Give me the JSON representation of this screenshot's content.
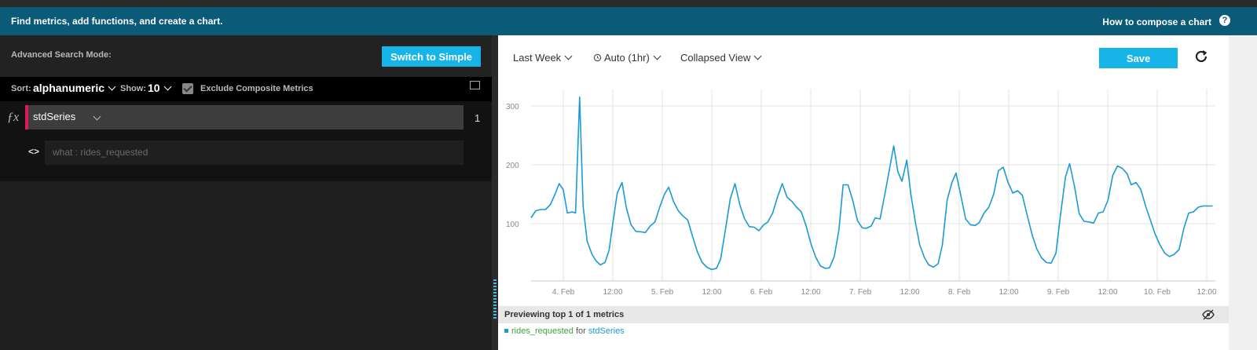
{
  "banner": {
    "message": "Find metrics, add functions, and create a chart.",
    "help_link": "How to compose a chart",
    "help_icon": "?"
  },
  "left": {
    "mode_label": "Advanced Search Mode:",
    "switch_button": "Switch to Simple",
    "sort_label": "Sort:",
    "sort_value": "alphanumeric",
    "show_label": "Show:",
    "show_value": "10",
    "exclude_label": "Exclude Composite Metrics",
    "exclude_checked": true,
    "function_symbol": "ƒx",
    "function_name": "stdSeries",
    "result_count": "1",
    "arg_icon": "<>",
    "arg_placeholder": "what : rides_requested"
  },
  "right": {
    "time_range": "Last Week",
    "interval": "Auto (1hr)",
    "view": "Collapsed View",
    "save_button": "Save",
    "preview_text": "Previewing top 1 of 1 metrics",
    "legend_metric": "rides_requested",
    "legend_for": "for",
    "legend_series": "stdSeries"
  },
  "colors": {
    "accent": "#17b4e8",
    "banner": "#0b5a78",
    "function_marker": "#e01a5a",
    "line": "#1a9ad6"
  },
  "chart_data": {
    "type": "line",
    "y_ticks": [
      "300",
      "200",
      "100"
    ],
    "x_ticks": [
      "4. Feb",
      "12:00",
      "5. Feb",
      "12:00",
      "6. Feb",
      "12:00",
      "7. Feb",
      "12:00",
      "8. Feb",
      "12:00",
      "9. Feb",
      "12:00",
      "10. Feb",
      "12:00"
    ],
    "ylim": [
      0,
      330
    ],
    "xlim": [
      0,
      1
    ],
    "grid": true,
    "series": [
      {
        "color": "#1a9ad6",
        "points": [
          [
            0.0,
            110
          ],
          [
            0.007,
            122
          ],
          [
            0.014,
            124
          ],
          [
            0.021,
            124
          ],
          [
            0.028,
            132
          ],
          [
            0.035,
            150
          ],
          [
            0.041,
            168
          ],
          [
            0.047,
            158
          ],
          [
            0.053,
            118
          ],
          [
            0.06,
            120
          ],
          [
            0.065,
            118
          ],
          [
            0.071,
            315
          ],
          [
            0.076,
            130
          ],
          [
            0.082,
            70
          ],
          [
            0.089,
            48
          ],
          [
            0.095,
            37
          ],
          [
            0.101,
            30
          ],
          [
            0.108,
            34
          ],
          [
            0.114,
            55
          ],
          [
            0.12,
            105
          ],
          [
            0.126,
            152
          ],
          [
            0.133,
            170
          ],
          [
            0.139,
            128
          ],
          [
            0.146,
            98
          ],
          [
            0.153,
            87
          ],
          [
            0.161,
            86
          ],
          [
            0.167,
            85
          ],
          [
            0.174,
            96
          ],
          [
            0.181,
            103
          ],
          [
            0.188,
            128
          ],
          [
            0.195,
            150
          ],
          [
            0.201,
            162
          ],
          [
            0.208,
            138
          ],
          [
            0.215,
            122
          ],
          [
            0.222,
            113
          ],
          [
            0.229,
            106
          ],
          [
            0.236,
            78
          ],
          [
            0.243,
            52
          ],
          [
            0.25,
            34
          ],
          [
            0.257,
            26
          ],
          [
            0.264,
            22
          ],
          [
            0.271,
            24
          ],
          [
            0.277,
            40
          ],
          [
            0.284,
            90
          ],
          [
            0.291,
            142
          ],
          [
            0.298,
            168
          ],
          [
            0.305,
            132
          ],
          [
            0.312,
            108
          ],
          [
            0.319,
            95
          ],
          [
            0.326,
            94
          ],
          [
            0.333,
            88
          ],
          [
            0.34,
            98
          ],
          [
            0.346,
            103
          ],
          [
            0.353,
            118
          ],
          [
            0.36,
            145
          ],
          [
            0.367,
            168
          ],
          [
            0.374,
            145
          ],
          [
            0.381,
            138
          ],
          [
            0.388,
            128
          ],
          [
            0.395,
            120
          ],
          [
            0.402,
            96
          ],
          [
            0.409,
            66
          ],
          [
            0.416,
            43
          ],
          [
            0.423,
            28
          ],
          [
            0.43,
            24
          ],
          [
            0.436,
            25
          ],
          [
            0.443,
            44
          ],
          [
            0.45,
            90
          ],
          [
            0.456,
            166
          ],
          [
            0.463,
            166
          ],
          [
            0.47,
            140
          ],
          [
            0.477,
            105
          ],
          [
            0.484,
            93
          ],
          [
            0.49,
            92
          ],
          [
            0.497,
            96
          ],
          [
            0.503,
            110
          ],
          [
            0.51,
            108
          ],
          [
            0.517,
            150
          ],
          [
            0.524,
            194
          ],
          [
            0.53,
            232
          ],
          [
            0.536,
            188
          ],
          [
            0.542,
            172
          ],
          [
            0.549,
            208
          ],
          [
            0.555,
            150
          ],
          [
            0.562,
            100
          ],
          [
            0.568,
            64
          ],
          [
            0.575,
            42
          ],
          [
            0.581,
            30
          ],
          [
            0.588,
            26
          ],
          [
            0.595,
            32
          ],
          [
            0.601,
            64
          ],
          [
            0.608,
            140
          ],
          [
            0.615,
            170
          ],
          [
            0.621,
            186
          ],
          [
            0.628,
            148
          ],
          [
            0.635,
            108
          ],
          [
            0.642,
            98
          ],
          [
            0.649,
            97
          ],
          [
            0.655,
            102
          ],
          [
            0.662,
            118
          ],
          [
            0.669,
            128
          ],
          [
            0.676,
            150
          ],
          [
            0.683,
            190
          ],
          [
            0.69,
            196
          ],
          [
            0.697,
            170
          ],
          [
            0.704,
            152
          ],
          [
            0.711,
            156
          ],
          [
            0.718,
            148
          ],
          [
            0.725,
            114
          ],
          [
            0.732,
            82
          ],
          [
            0.739,
            57
          ],
          [
            0.746,
            42
          ],
          [
            0.753,
            34
          ],
          [
            0.76,
            33
          ],
          [
            0.767,
            50
          ],
          [
            0.774,
            118
          ],
          [
            0.781,
            180
          ],
          [
            0.787,
            202
          ],
          [
            0.794,
            164
          ],
          [
            0.801,
            117
          ],
          [
            0.808,
            104
          ],
          [
            0.815,
            103
          ],
          [
            0.822,
            101
          ],
          [
            0.829,
            118
          ],
          [
            0.836,
            120
          ],
          [
            0.843,
            140
          ],
          [
            0.85,
            182
          ],
          [
            0.857,
            198
          ],
          [
            0.864,
            194
          ],
          [
            0.871,
            185
          ],
          [
            0.877,
            166
          ],
          [
            0.884,
            170
          ],
          [
            0.891,
            158
          ],
          [
            0.898,
            130
          ],
          [
            0.905,
            106
          ],
          [
            0.912,
            82
          ],
          [
            0.919,
            64
          ],
          [
            0.926,
            50
          ],
          [
            0.933,
            44
          ],
          [
            0.94,
            48
          ],
          [
            0.947,
            56
          ],
          [
            0.954,
            92
          ],
          [
            0.961,
            118
          ],
          [
            0.968,
            120
          ],
          [
            0.975,
            128
          ],
          [
            0.982,
            130
          ],
          [
            0.989,
            130
          ],
          [
            0.996,
            130
          ]
        ]
      }
    ]
  }
}
